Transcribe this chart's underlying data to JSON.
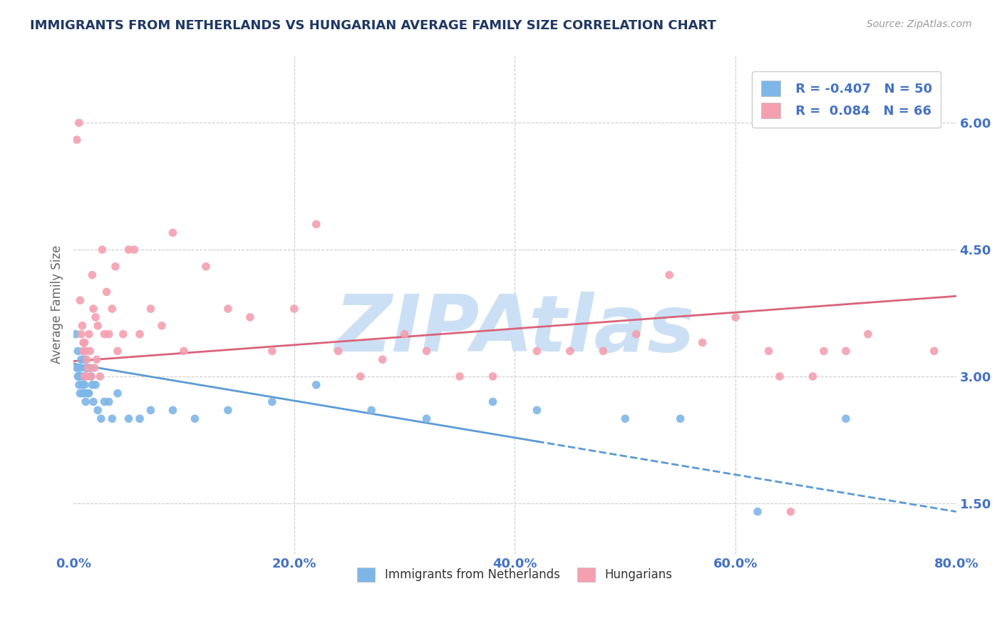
{
  "title": "IMMIGRANTS FROM NETHERLANDS VS HUNGARIAN AVERAGE FAMILY SIZE CORRELATION CHART",
  "source": "Source: ZipAtlas.com",
  "ylabel": "Average Family Size",
  "xlim": [
    0.0,
    80.0
  ],
  "ylim": [
    0.9,
    6.8
  ],
  "yticks": [
    1.5,
    3.0,
    4.5,
    6.0
  ],
  "xticks": [
    0.0,
    20.0,
    40.0,
    60.0,
    80.0
  ],
  "xtick_labels": [
    "0.0%",
    "20.0%",
    "40.0%",
    "60.0%",
    "80.0%"
  ],
  "background_color": "#ffffff",
  "grid_color": "#cccccc",
  "axis_color": "#4472c4",
  "title_color": "#1f3864",
  "watermark": "ZIPAtlas",
  "watermark_color": "#cce0f5",
  "series1_color": "#7eb6e8",
  "series2_color": "#f4a0b0",
  "line1_color": "#5b9bd5",
  "line2_color": "#d9647a",
  "R1": -0.407,
  "N1": 50,
  "R2": 0.084,
  "N2": 66,
  "blue_x_start": 0.0,
  "blue_x_end": 80.0,
  "blue_y_start": 3.15,
  "blue_y_end": 1.4,
  "blue_solid_end_x": 42.0,
  "pink_x_start": 0.0,
  "pink_x_end": 80.0,
  "pink_y_start": 3.18,
  "pink_y_end": 3.95,
  "blue_x": [
    0.2,
    0.3,
    0.4,
    0.4,
    0.5,
    0.5,
    0.5,
    0.6,
    0.6,
    0.7,
    0.7,
    0.8,
    0.8,
    0.9,
    0.9,
    1.0,
    1.0,
    1.0,
    1.1,
    1.1,
    1.2,
    1.3,
    1.4,
    1.5,
    1.6,
    1.7,
    1.8,
    2.0,
    2.2,
    2.5,
    2.8,
    3.2,
    3.5,
    4.0,
    5.0,
    6.0,
    7.0,
    9.0,
    11.0,
    14.0,
    18.0,
    22.0,
    27.0,
    32.0,
    38.0,
    42.0,
    50.0,
    55.0,
    62.0,
    70.0
  ],
  "blue_y": [
    3.5,
    3.1,
    3.0,
    3.3,
    3.1,
    3.0,
    2.9,
    3.1,
    2.8,
    3.2,
    3.0,
    2.9,
    2.8,
    3.3,
    3.0,
    2.9,
    2.8,
    3.2,
    2.7,
    3.1,
    3.1,
    2.8,
    2.8,
    3.1,
    3.0,
    2.9,
    2.7,
    2.9,
    2.6,
    2.5,
    2.7,
    2.7,
    2.5,
    2.8,
    2.5,
    2.5,
    2.6,
    2.6,
    2.5,
    2.6,
    2.7,
    2.9,
    2.6,
    2.5,
    2.7,
    2.6,
    2.5,
    2.5,
    1.4,
    2.5
  ],
  "pink_x": [
    0.3,
    0.5,
    0.6,
    0.7,
    0.8,
    0.9,
    0.9,
    1.0,
    1.0,
    1.1,
    1.2,
    1.2,
    1.3,
    1.4,
    1.5,
    1.6,
    1.7,
    1.8,
    1.9,
    2.0,
    2.1,
    2.2,
    2.4,
    2.6,
    2.8,
    3.0,
    3.2,
    3.5,
    3.8,
    4.0,
    4.5,
    5.0,
    5.5,
    6.0,
    7.0,
    8.0,
    9.0,
    10.0,
    12.0,
    14.0,
    16.0,
    18.0,
    20.0,
    22.0,
    24.0,
    26.0,
    28.0,
    30.0,
    32.0,
    35.0,
    38.0,
    42.0,
    45.0,
    48.0,
    51.0,
    54.0,
    57.0,
    60.0,
    63.0,
    64.0,
    65.0,
    67.0,
    68.0,
    70.0,
    72.0,
    78.0
  ],
  "pink_y": [
    5.8,
    6.0,
    3.9,
    3.5,
    3.6,
    3.4,
    3.3,
    3.4,
    3.0,
    3.3,
    3.2,
    3.0,
    3.1,
    3.5,
    3.3,
    3.0,
    4.2,
    3.8,
    3.1,
    3.7,
    3.2,
    3.6,
    3.0,
    4.5,
    3.5,
    4.0,
    3.5,
    3.8,
    4.3,
    3.3,
    3.5,
    4.5,
    4.5,
    3.5,
    3.8,
    3.6,
    4.7,
    3.3,
    4.3,
    3.8,
    3.7,
    3.3,
    3.8,
    4.8,
    3.3,
    3.0,
    3.2,
    3.5,
    3.3,
    3.0,
    3.0,
    3.3,
    3.3,
    3.3,
    3.5,
    4.2,
    3.4,
    3.7,
    3.3,
    3.0,
    1.4,
    3.0,
    3.3,
    3.3,
    3.5,
    3.3
  ]
}
